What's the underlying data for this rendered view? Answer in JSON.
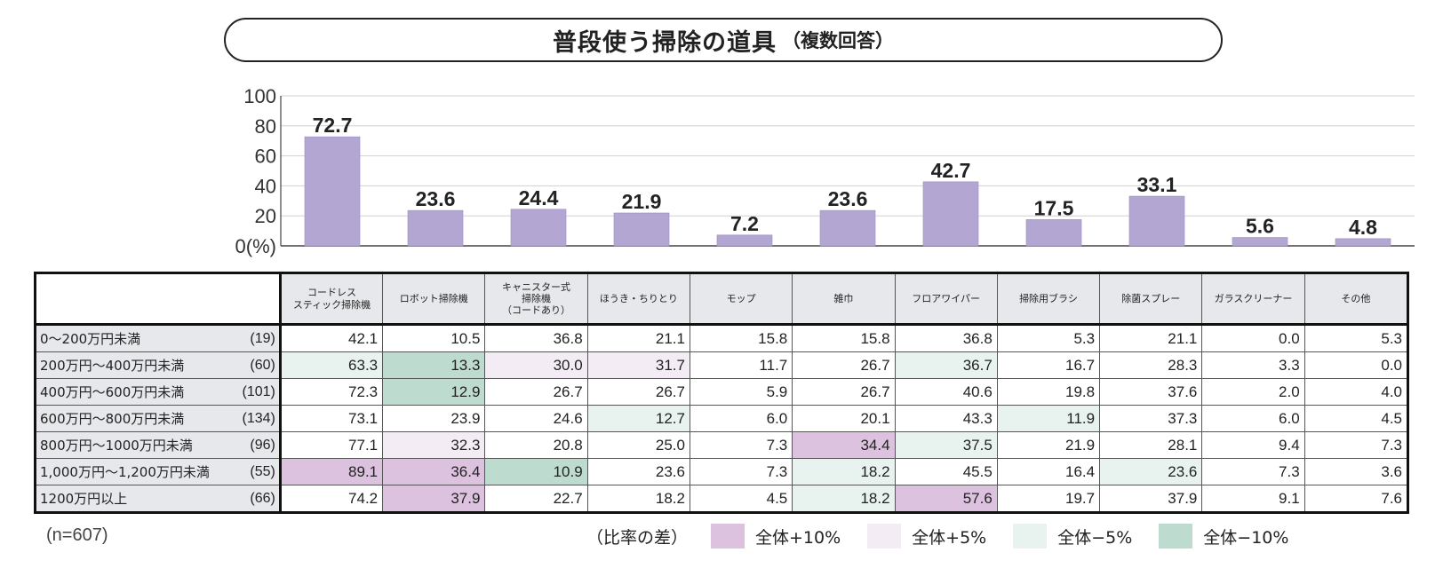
{
  "chart_data": {
    "type": "bar",
    "title": "普段使う掃除の道具",
    "subtitle": "（複数回答）",
    "y_ticks": [
      "100",
      "80",
      "60",
      "40",
      "20",
      "0(%)"
    ],
    "ylim": [
      0,
      100
    ],
    "categories": [
      "コードレススティック掃除機",
      "ロボット掃除機",
      "キャニスター式掃除機（コードあり）",
      "ほうき・ちりとり",
      "モップ",
      "雑巾",
      "フロアワイパー",
      "掃除用ブラシ",
      "除菌スプレー",
      "ガラスクリーナー",
      "その他"
    ],
    "values": [
      72.7,
      23.6,
      24.4,
      21.9,
      7.2,
      23.6,
      42.7,
      17.5,
      33.1,
      5.6,
      4.8
    ],
    "value_labels": [
      "72.7",
      "23.6",
      "24.4",
      "21.9",
      "7.2",
      "23.6",
      "42.7",
      "17.5",
      "33.1",
      "5.6",
      "4.8"
    ],
    "bar_color": "#b3a6d3"
  },
  "table": {
    "headers": [
      [
        "コードレス",
        "スティック掃除機"
      ],
      [
        "ロボット掃除機"
      ],
      [
        "キャニスター式",
        "掃除機",
        "（コードあり）"
      ],
      [
        "ほうき・ちりとり"
      ],
      [
        "モップ"
      ],
      [
        "雑巾"
      ],
      [
        "フロアワイパー"
      ],
      [
        "掃除用ブラシ"
      ],
      [
        "除菌スプレー"
      ],
      [
        "ガラスクリーナー"
      ],
      [
        "その他"
      ]
    ],
    "rows": [
      {
        "label": "0～200万円未満",
        "n": "(19)",
        "values": [
          "42.1",
          "10.5",
          "36.8",
          "21.1",
          "15.8",
          "15.8",
          "36.8",
          "5.3",
          "21.1",
          "0.0",
          "5.3"
        ],
        "diff": [
          "",
          "",
          "",
          "",
          "",
          "",
          "",
          "",
          "",
          "",
          ""
        ]
      },
      {
        "label": "200万円～400万円未満",
        "n": "(60)",
        "values": [
          "63.3",
          "13.3",
          "30.0",
          "31.7",
          "11.7",
          "26.7",
          "36.7",
          "16.7",
          "28.3",
          "3.3",
          "0.0"
        ],
        "diff": [
          "m5",
          "m10",
          "p5",
          "p5",
          "",
          "",
          "m5",
          "",
          "",
          "",
          ""
        ]
      },
      {
        "label": "400万円～600万円未満",
        "n": "(101)",
        "values": [
          "72.3",
          "12.9",
          "26.7",
          "26.7",
          "5.9",
          "26.7",
          "40.6",
          "19.8",
          "37.6",
          "2.0",
          "4.0"
        ],
        "diff": [
          "",
          "m10",
          "",
          "",
          "",
          "",
          "",
          "",
          "",
          "",
          ""
        ]
      },
      {
        "label": "600万円～800万円未満",
        "n": "(134)",
        "values": [
          "73.1",
          "23.9",
          "24.6",
          "12.7",
          "6.0",
          "20.1",
          "43.3",
          "11.9",
          "37.3",
          "6.0",
          "4.5"
        ],
        "diff": [
          "",
          "",
          "",
          "m5",
          "",
          "",
          "",
          "m5",
          "",
          "",
          ""
        ]
      },
      {
        "label": "800万円～1000万円未満",
        "n": "(96)",
        "values": [
          "77.1",
          "32.3",
          "20.8",
          "25.0",
          "7.3",
          "34.4",
          "37.5",
          "21.9",
          "28.1",
          "9.4",
          "7.3"
        ],
        "diff": [
          "",
          "p5",
          "",
          "",
          "",
          "p10",
          "m5",
          "",
          "",
          "",
          ""
        ]
      },
      {
        "label": "1,000万円～1,200万円未満",
        "n": "(55)",
        "values": [
          "89.1",
          "36.4",
          "10.9",
          "23.6",
          "7.3",
          "18.2",
          "45.5",
          "16.4",
          "23.6",
          "7.3",
          "3.6"
        ],
        "diff": [
          "p10",
          "p10",
          "m10",
          "",
          "",
          "m5",
          "",
          "",
          "m5",
          "",
          ""
        ]
      },
      {
        "label": "1200万円以上",
        "n": "(66)",
        "values": [
          "74.2",
          "37.9",
          "22.7",
          "18.2",
          "4.5",
          "18.2",
          "57.6",
          "19.7",
          "37.9",
          "9.1",
          "7.6"
        ],
        "diff": [
          "",
          "p10",
          "",
          "",
          "",
          "m5",
          "p10",
          "",
          "",
          "",
          ""
        ]
      }
    ]
  },
  "footer": {
    "n": "(n=607)"
  },
  "legend": {
    "title": "（比率の差）",
    "items": [
      {
        "label": "全体+10%",
        "color": "#dcc2de"
      },
      {
        "label": "全体+5%",
        "color": "#f3ecf4"
      },
      {
        "label": "全体−5%",
        "color": "#e8f2ee"
      },
      {
        "label": "全体−10%",
        "color": "#bddccf"
      }
    ]
  }
}
